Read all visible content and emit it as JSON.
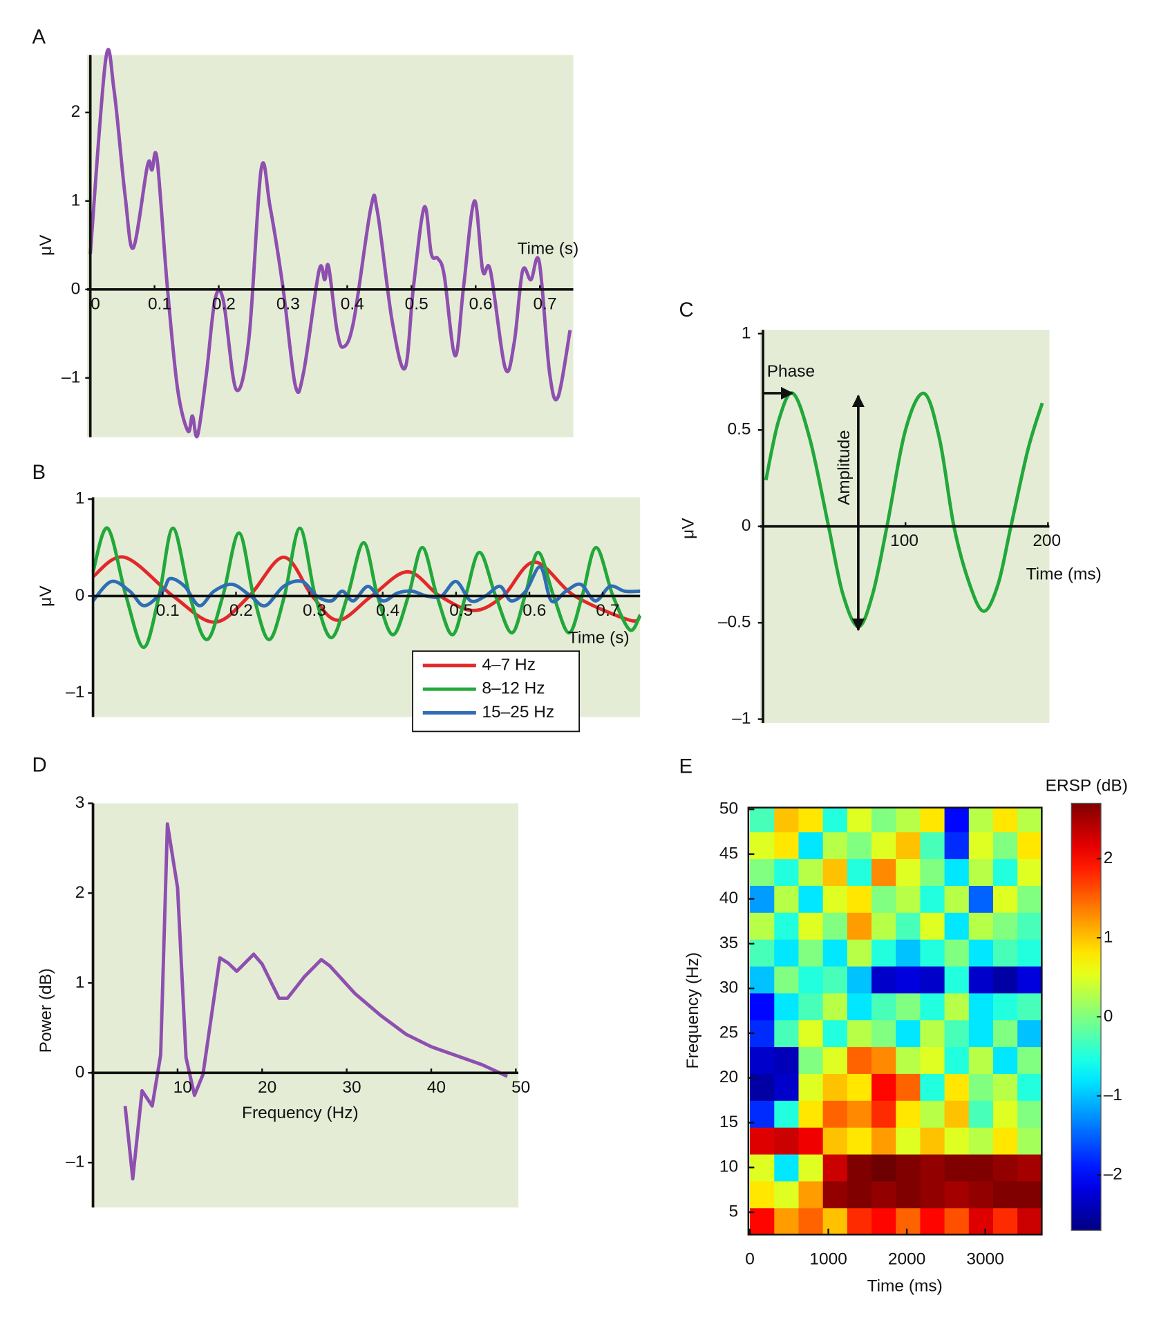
{
  "chart_data": [
    {
      "type": "line",
      "panel_label": "A",
      "x_label": "Time (s)",
      "y_label": "μV",
      "background": "#e4ecd6",
      "color": "#8e4fb0",
      "smooth": true,
      "x": [
        0,
        0.024,
        0.037,
        0.054,
        0.067,
        0.089,
        0.096,
        0.104,
        0.12,
        0.136,
        0.152,
        0.159,
        0.167,
        0.181,
        0.194,
        0.207,
        0.227,
        0.247,
        0.266,
        0.28,
        0.3,
        0.319,
        0.332,
        0.356,
        0.365,
        0.371,
        0.384,
        0.394,
        0.41,
        0.437,
        0.447,
        0.47,
        0.49,
        0.503,
        0.52,
        0.531,
        0.541,
        0.551,
        0.568,
        0.581,
        0.598,
        0.611,
        0.623,
        0.646,
        0.66,
        0.673,
        0.686,
        0.699,
        0.715,
        0.728,
        0.747
      ],
      "values": [
        0.4,
        2.6,
        2.25,
        1.07,
        0.47,
        1.4,
        1.35,
        1.47,
        0.02,
        -1.13,
        -1.6,
        -1.43,
        -1.65,
        -0.94,
        -0.12,
        -0.12,
        -1.13,
        -0.55,
        1.36,
        0.93,
        0.02,
        -1.08,
        -0.94,
        0.21,
        0.11,
        0.26,
        -0.46,
        -0.65,
        -0.36,
        0.93,
        0.88,
        -0.36,
        -0.89,
        0.02,
        0.93,
        0.4,
        0.35,
        0.16,
        -0.75,
        0.02,
        1.0,
        0.21,
        0.21,
        -0.89,
        -0.6,
        0.21,
        0.11,
        0.31,
        -0.94,
        -1.22,
        -0.46
      ],
      "xlim": [
        -0.005,
        0.752
      ],
      "ylim": [
        -1.67,
        2.65
      ],
      "xticks": [
        0,
        0.1,
        0.2,
        0.3,
        0.4,
        0.5,
        0.6,
        0.7
      ],
      "yticks": [
        {
          "value": -1,
          "label": "–1"
        },
        0,
        1,
        2
      ]
    },
    {
      "type": "line",
      "panel_label": "B",
      "x_label": "Time (s)",
      "y_label": "μV",
      "background": "#e4ecd6",
      "smooth": true,
      "legend": "lower right",
      "series": [
        {
          "name": "4–7 Hz",
          "color": "#e3282a",
          "x": [
            0.005,
            0.048,
            0.114,
            0.17,
            0.218,
            0.265,
            0.304,
            0.339,
            0.385,
            0.434,
            0.478,
            0.524,
            0.564,
            0.607,
            0.662,
            0.737,
            0.751
          ],
          "values": [
            0.2,
            0.4,
            0,
            -0.27,
            0,
            0.4,
            0,
            -0.25,
            0,
            0.25,
            0,
            -0.15,
            0,
            0.35,
            0,
            -0.25,
            -0.2
          ]
        },
        {
          "name": "8–12 Hz",
          "color": "#22a83a",
          "x": [
            0.005,
            0.025,
            0.05,
            0.074,
            0.095,
            0.114,
            0.137,
            0.16,
            0.182,
            0.204,
            0.224,
            0.245,
            0.266,
            0.287,
            0.308,
            0.33,
            0.352,
            0.374,
            0.393,
            0.414,
            0.435,
            0.454,
            0.474,
            0.495,
            0.513,
            0.532,
            0.554,
            0.576,
            0.594,
            0.612,
            0.633,
            0.654,
            0.672,
            0.691,
            0.714,
            0.737,
            0.751
          ],
          "values": [
            0.25,
            0.7,
            0,
            -0.53,
            0,
            0.7,
            0,
            -0.45,
            0,
            0.65,
            0,
            -0.45,
            0,
            0.7,
            0,
            -0.43,
            0,
            0.55,
            0,
            -0.4,
            0,
            0.5,
            0,
            -0.4,
            0,
            0.45,
            0,
            -0.38,
            0,
            0.45,
            0,
            -0.38,
            0,
            0.5,
            0,
            -0.35,
            -0.2
          ]
        },
        {
          "name": "15–25 Hz",
          "color": "#2f6db5",
          "x": [
            0.005,
            0.03,
            0.055,
            0.075,
            0.1,
            0.11,
            0.13,
            0.15,
            0.17,
            0.195,
            0.22,
            0.24,
            0.265,
            0.29,
            0.31,
            0.33,
            0.345,
            0.36,
            0.38,
            0.4,
            0.42,
            0.44,
            0.46,
            0.48,
            0.5,
            0.52,
            0.54,
            0.56,
            0.575,
            0.595,
            0.615,
            0.63,
            0.65,
            0.67,
            0.69,
            0.71,
            0.73,
            0.751
          ],
          "values": [
            -0.05,
            0.15,
            0.05,
            -0.1,
            0.05,
            0.18,
            0.1,
            -0.1,
            0.05,
            0.12,
            0,
            -0.1,
            0.1,
            0.15,
            0,
            -0.05,
            0.05,
            -0.05,
            0.1,
            -0.05,
            0.03,
            0.05,
            0,
            0,
            0.15,
            -0.05,
            0,
            0.1,
            -0.05,
            0.05,
            0.3,
            -0.05,
            0.05,
            0.12,
            -0.05,
            0.1,
            0.05,
            0.05
          ]
        }
      ],
      "xlim": [
        0.005,
        0.751
      ],
      "ylim": [
        -1.25,
        1.02
      ],
      "xticks": [
        0.1,
        0.2,
        0.3,
        0.4,
        0.5,
        0.6,
        0.7
      ],
      "yticks": [
        {
          "value": -1,
          "label": "–1"
        },
        0,
        1
      ]
    },
    {
      "type": "line",
      "panel_label": "C",
      "x_label": "Time (ms)",
      "y_label": "μV",
      "background": "#e4ecd6",
      "color": "#22a83a",
      "smooth": true,
      "annotations": [
        "Phase",
        "Amplitude"
      ],
      "x": [
        2,
        11,
        21,
        33,
        46,
        56,
        67,
        77,
        87,
        100,
        113,
        124,
        134,
        145,
        155,
        165,
        174,
        186,
        196
      ],
      "values": [
        0.24,
        0.55,
        0.69,
        0.45,
        0,
        -0.35,
        -0.52,
        -0.35,
        0,
        0.5,
        0.69,
        0.45,
        0,
        -0.3,
        -0.44,
        -0.3,
        0,
        0.4,
        0.64
      ],
      "xlim": [
        -2,
        201
      ],
      "ylim": [
        -1.02,
        1.02
      ],
      "xticks": [
        100,
        200
      ],
      "yticks": [
        {
          "value": -1,
          "label": "–1"
        },
        {
          "value": -0.5,
          "label": "–0.5"
        },
        0,
        0.5,
        1
      ]
    },
    {
      "type": "line",
      "panel_label": "D",
      "x_label": "Frequency (Hz)",
      "y_label": "Power (dB)",
      "background": "#e4ecd6",
      "color": "#8e4fb0",
      "smooth": false,
      "x": [
        3.8,
        4.7,
        5.8,
        7,
        8,
        8.8,
        10,
        11,
        12,
        13,
        15,
        16,
        17,
        19,
        20,
        22,
        23,
        25,
        27,
        28,
        31,
        34,
        37,
        40,
        43,
        46,
        49
      ],
      "values": [
        -0.37,
        -1.18,
        -0.2,
        -0.37,
        0.2,
        2.77,
        2.06,
        0.17,
        -0.25,
        -0.02,
        1.28,
        1.22,
        1.13,
        1.32,
        1.21,
        0.83,
        0.83,
        1.07,
        1.26,
        1.19,
        0.88,
        0.64,
        0.43,
        0.29,
        0.19,
        0.09,
        -0.04
      ],
      "xlim": [
        -0.2,
        50.3
      ],
      "ylim": [
        -1.5,
        3
      ],
      "xticks": [
        10,
        20,
        30,
        40,
        50
      ],
      "yticks": [
        {
          "value": -1,
          "label": "–1"
        },
        0,
        1,
        2,
        3
      ]
    },
    {
      "type": "heatmap",
      "panel_label": "E",
      "x_label": "Time (ms)",
      "y_label": "Frequency (Hz)",
      "colorbar_label": "ERSP (dB)",
      "background": "#e4ecd6",
      "colormap": "jet",
      "x": [
        155,
        465,
        775,
        1085,
        1395,
        1705,
        2015,
        2325,
        2635,
        2945,
        3255,
        3565
      ],
      "y": [
        4,
        7,
        10,
        13,
        16,
        19,
        22,
        25,
        28,
        31,
        34,
        37,
        40,
        43,
        46,
        49
      ],
      "z": [
        [
          2.0,
          1.2,
          1.5,
          1.0,
          1.8,
          2.0,
          1.5,
          2.0,
          1.6,
          2.2,
          1.8,
          2.3
        ],
        [
          0.8,
          0.5,
          1.2,
          2.6,
          2.7,
          2.6,
          2.7,
          2.6,
          2.5,
          2.6,
          2.7,
          2.7
        ],
        [
          0.5,
          -0.8,
          0.5,
          2.3,
          2.7,
          2.8,
          2.7,
          2.6,
          2.7,
          2.7,
          2.6,
          2.5
        ],
        [
          2.2,
          2.3,
          2.1,
          1.0,
          0.8,
          1.2,
          0.5,
          1.0,
          0.5,
          0.3,
          0.8,
          0.2
        ],
        [
          -1.8,
          -0.5,
          0.8,
          1.5,
          1.3,
          1.8,
          0.8,
          0.3,
          1.0,
          -0.3,
          0.5,
          0.0
        ],
        [
          -2.5,
          -2.3,
          0.5,
          1.0,
          0.8,
          2.0,
          1.5,
          -0.5,
          0.8,
          0.0,
          0.3,
          -0.5
        ],
        [
          -2.3,
          -2.4,
          0.0,
          0.5,
          1.5,
          1.3,
          0.3,
          0.5,
          -0.5,
          0.3,
          -0.8,
          0.0
        ],
        [
          -1.8,
          -0.3,
          0.5,
          -0.5,
          0.3,
          0.0,
          -0.8,
          0.3,
          -0.3,
          -0.8,
          0.0,
          -1.0
        ],
        [
          -2.0,
          -0.8,
          -0.3,
          0.3,
          -0.8,
          -0.3,
          0.0,
          -0.5,
          0.3,
          -0.8,
          -0.5,
          -0.3
        ],
        [
          -1.0,
          0.0,
          -0.5,
          -0.3,
          -1.0,
          -2.3,
          -2.2,
          -2.3,
          -0.5,
          -2.3,
          -2.5,
          -2.2
        ],
        [
          -0.3,
          -0.8,
          0.0,
          -0.8,
          0.3,
          -0.5,
          -1.0,
          -0.5,
          0.0,
          -0.8,
          -0.3,
          -0.5
        ],
        [
          0.3,
          -0.5,
          0.5,
          0.0,
          1.2,
          0.3,
          -0.3,
          0.5,
          -0.8,
          0.3,
          0.0,
          -0.3
        ],
        [
          -1.2,
          0.3,
          -0.8,
          0.5,
          0.8,
          0.0,
          0.3,
          -0.5,
          0.3,
          -1.5,
          0.5,
          0.0
        ],
        [
          0.0,
          -0.5,
          0.3,
          1.0,
          -0.5,
          1.3,
          0.5,
          0.0,
          -0.8,
          0.3,
          -0.5,
          0.5
        ],
        [
          0.5,
          0.8,
          -0.8,
          0.3,
          0.0,
          0.5,
          1.0,
          -0.3,
          -1.8,
          0.5,
          0.0,
          0.8
        ],
        [
          -0.3,
          1.0,
          0.8,
          -0.5,
          0.5,
          0.0,
          0.3,
          0.8,
          -2.0,
          0.3,
          0.8,
          0.3
        ]
      ],
      "xlim": [
        -20,
        3720
      ],
      "ylim": [
        2.5,
        50.2
      ],
      "xticks": [
        0,
        1000,
        2000,
        3000
      ],
      "yticks": [
        5,
        10,
        15,
        20,
        25,
        30,
        35,
        40,
        45,
        50
      ],
      "clim": [
        -2.7,
        2.7
      ],
      "cticks": [
        {
          "value": -2,
          "label": "–2"
        },
        {
          "value": -1,
          "label": "–1"
        },
        0,
        1,
        2
      ]
    }
  ]
}
